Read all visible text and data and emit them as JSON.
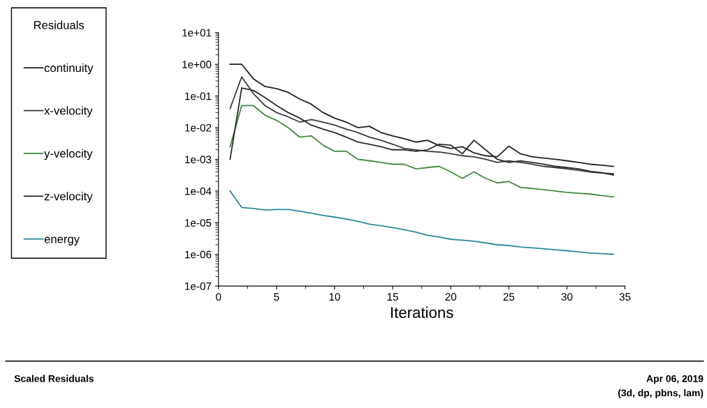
{
  "chart_data": {
    "type": "line",
    "xlabel": "Iterations",
    "legend_title": "Residuals",
    "x": [
      1,
      2,
      3,
      4,
      5,
      6,
      7,
      8,
      9,
      10,
      11,
      12,
      13,
      14,
      15,
      16,
      17,
      18,
      19,
      20,
      21,
      22,
      23,
      24,
      25,
      26,
      27,
      28,
      29,
      30,
      31,
      32,
      33,
      34
    ],
    "series": [
      {
        "name": "continuity",
        "color": "#202020",
        "values": [
          1,
          1,
          0.35,
          0.2,
          0.17,
          0.13,
          0.08,
          0.055,
          0.03,
          0.02,
          0.015,
          0.01,
          0.011,
          0.007,
          0.0055,
          0.0045,
          0.0035,
          0.004,
          0.0027,
          0.0022,
          0.0025,
          0.0016,
          0.0013,
          0.0012,
          0.0026,
          0.0015,
          0.0012,
          0.0011,
          0.001,
          0.0009,
          0.0008,
          0.0007,
          0.00065,
          0.0006
        ]
      },
      {
        "name": "x-velocity",
        "color": "#3a3a3a",
        "values": [
          0.04,
          0.4,
          0.12,
          0.05,
          0.03,
          0.022,
          0.015,
          0.018,
          0.015,
          0.012,
          0.009,
          0.007,
          0.005,
          0.004,
          0.003,
          0.0022,
          0.002,
          0.0018,
          0.0017,
          0.0015,
          0.0013,
          0.0012,
          0.001,
          0.0008,
          0.0009,
          0.0008,
          0.0007,
          0.0006,
          0.00055,
          0.0005,
          0.00045,
          0.0004,
          0.00037,
          0.00035
        ]
      },
      {
        "name": "y-velocity",
        "color": "#3f8a3f",
        "values": [
          0.0025,
          0.05,
          0.05,
          0.025,
          0.017,
          0.01,
          0.005,
          0.0055,
          0.0028,
          0.0018,
          0.0018,
          0.001,
          0.0009,
          0.0008,
          0.0007,
          0.0007,
          0.0005,
          0.00055,
          0.0006,
          0.0004,
          0.00025,
          0.0004,
          0.00025,
          0.00018,
          0.0002,
          0.00013,
          0.00012,
          0.00011,
          0.0001,
          9e-05,
          8.5e-05,
          8e-05,
          7.2e-05,
          6.5e-05
        ]
      },
      {
        "name": "z-velocity",
        "color": "#2a2a2a",
        "values": [
          0.001,
          0.18,
          0.15,
          0.09,
          0.05,
          0.03,
          0.02,
          0.012,
          0.009,
          0.007,
          0.005,
          0.0035,
          0.003,
          0.0025,
          0.002,
          0.002,
          0.0018,
          0.002,
          0.003,
          0.0028,
          0.0015,
          0.004,
          0.002,
          0.001,
          0.0008,
          0.0009,
          0.0008,
          0.0007,
          0.0006,
          0.00055,
          0.0005,
          0.00042,
          0.00038,
          0.00032
        ]
      },
      {
        "name": "energy",
        "color": "#2a8a9a",
        "values": [
          0.0001,
          3e-05,
          2.8e-05,
          2.5e-05,
          2.6e-05,
          2.6e-05,
          2.3e-05,
          2e-05,
          1.7e-05,
          1.5e-05,
          1.3e-05,
          1.1e-05,
          9e-06,
          8e-06,
          7e-06,
          6e-06,
          5e-06,
          4e-06,
          3.5e-06,
          3e-06,
          2.8e-06,
          2.6e-06,
          2.3e-06,
          2e-06,
          1.9e-06,
          1.7e-06,
          1.6e-06,
          1.5e-06,
          1.4e-06,
          1.3e-06,
          1.2e-06,
          1.1e-06,
          1.05e-06,
          1e-06
        ]
      }
    ],
    "log": "y",
    "grid": false,
    "legend": "left",
    "marker": "none",
    "line_style": "solid",
    "xlim": [
      0,
      35
    ],
    "xticks": [
      0,
      5,
      10,
      15,
      20,
      25,
      30,
      35
    ],
    "ylim": [
      1e-07,
      10
    ],
    "yticks": [
      {
        "value": 1e-07,
        "label": "1e-07"
      },
      {
        "value": 1e-06,
        "label": "1e-06"
      },
      {
        "value": 1e-05,
        "label": "1e-05"
      },
      {
        "value": 0.0001,
        "label": "1e-04"
      },
      {
        "value": 0.001,
        "label": "1e-03"
      },
      {
        "value": 0.01,
        "label": "1e-02"
      },
      {
        "value": 0.1,
        "label": "1e-01"
      },
      {
        "value": 1,
        "label": "1e+00"
      },
      {
        "value": 10,
        "label": "1e+01"
      }
    ],
    "annotations": [
      "Scaled Residuals",
      "Apr 06, 2019",
      "(3d, dp, pbns, lam)"
    ]
  }
}
